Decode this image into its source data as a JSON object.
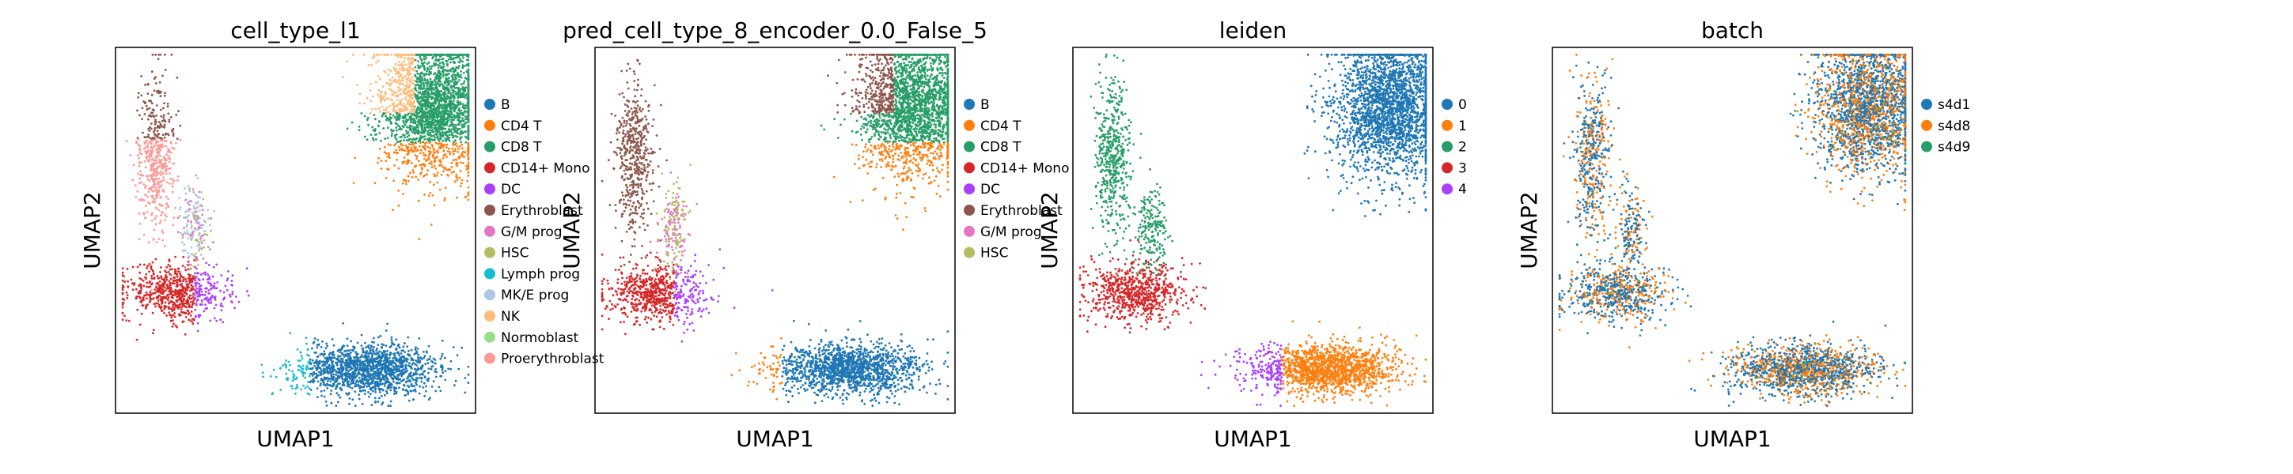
{
  "chart_data": [
    {
      "type": "scatter",
      "title": "cell_type_l1",
      "xlabel": "UMAP1",
      "ylabel": "UMAP2",
      "grid": false,
      "legend_position": "right",
      "coloring": "cell_type",
      "series": [
        {
          "name": "B",
          "color": "#1f77b4"
        },
        {
          "name": "CD4 T",
          "color": "#ff7f0e"
        },
        {
          "name": "CD8 T",
          "color": "#279e68"
        },
        {
          "name": "CD14+ Mono",
          "color": "#d62728"
        },
        {
          "name": "DC",
          "color": "#aa40fc"
        },
        {
          "name": "Erythroblast",
          "color": "#8c564b"
        },
        {
          "name": "G/M prog",
          "color": "#e377c2"
        },
        {
          "name": "HSC",
          "color": "#b5bd61"
        },
        {
          "name": "Lymph prog",
          "color": "#17becf"
        },
        {
          "name": "MK/E prog",
          "color": "#aec7e8"
        },
        {
          "name": "NK",
          "color": "#ffbb78"
        },
        {
          "name": "Normoblast",
          "color": "#98df8a"
        },
        {
          "name": "Proerythroblast",
          "color": "#ff9896"
        }
      ]
    },
    {
      "type": "scatter",
      "title": "pred_cell_type_8_encoder_0.0_False_5",
      "xlabel": "UMAP1",
      "ylabel": "UMAP2",
      "grid": false,
      "legend_position": "right",
      "coloring": "pred",
      "series": [
        {
          "name": "B",
          "color": "#1f77b4"
        },
        {
          "name": "CD4 T",
          "color": "#ff7f0e"
        },
        {
          "name": "CD8 T",
          "color": "#279e68"
        },
        {
          "name": "CD14+ Mono",
          "color": "#d62728"
        },
        {
          "name": "DC",
          "color": "#aa40fc"
        },
        {
          "name": "Erythroblast",
          "color": "#8c564b"
        },
        {
          "name": "G/M prog",
          "color": "#e377c2"
        },
        {
          "name": "HSC",
          "color": "#b5bd61"
        }
      ]
    },
    {
      "type": "scatter",
      "title": "leiden",
      "xlabel": "UMAP1",
      "ylabel": "UMAP2",
      "grid": false,
      "legend_position": "right",
      "coloring": "leiden",
      "series": [
        {
          "name": "0",
          "color": "#1f77b4"
        },
        {
          "name": "1",
          "color": "#ff7f0e"
        },
        {
          "name": "2",
          "color": "#279e68"
        },
        {
          "name": "3",
          "color": "#d62728"
        },
        {
          "name": "4",
          "color": "#aa40fc"
        }
      ]
    },
    {
      "type": "scatter",
      "title": "batch",
      "xlabel": "UMAP1",
      "ylabel": "UMAP2",
      "grid": false,
      "legend_position": "right",
      "coloring": "batch",
      "series": [
        {
          "name": "s4d1",
          "color": "#1f77b4"
        },
        {
          "name": "s4d8",
          "color": "#ff7f0e"
        },
        {
          "name": "s4d9",
          "color": "#279e68"
        }
      ]
    }
  ]
}
